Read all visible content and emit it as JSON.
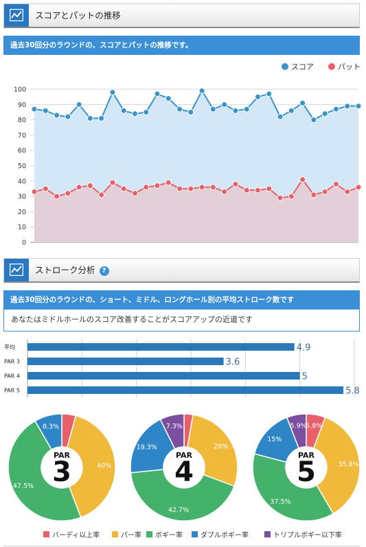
{
  "section1": {
    "title": "スコアとパットの推移",
    "banner": "過去30回分のラウンドの、スコアとパットの推移です。"
  },
  "section2": {
    "title": "ストローク分析",
    "help": "?",
    "banner": "過去30回分のラウンドの、ショート、ミドル、ロングホール別の平均ストローク数です",
    "advice": "あなたはミドルホールのスコア改善することがスコアアップの近道です"
  },
  "colors": {
    "accent": "#3a8fd6",
    "score_line": "#3a93c9",
    "putt_line": "#e8606a",
    "bar": "#2a78b8",
    "birdie": "#e8606a",
    "par": "#f0b93a",
    "bogey": "#44b26a",
    "double": "#2f86c6",
    "triple": "#7b4ea0"
  },
  "chart_data": [
    {
      "type": "area",
      "ylim": [
        0,
        100
      ],
      "yticks": [
        "0",
        "10",
        "20",
        "30",
        "40",
        "50",
        "60",
        "70",
        "80",
        "90",
        "100"
      ],
      "legend_position": "top-right",
      "grid": true,
      "series": [
        {
          "name": "スコア",
          "values": [
            87,
            86,
            83,
            82,
            90,
            81,
            81,
            98,
            86,
            84,
            85,
            97,
            94,
            87,
            85,
            99,
            87,
            90,
            86,
            87,
            95,
            97,
            82,
            86,
            91,
            80,
            84,
            87,
            89,
            89
          ]
        },
        {
          "name": "パット",
          "values": [
            33,
            35,
            30,
            32,
            36,
            37,
            31,
            39,
            35,
            32,
            36,
            37,
            39,
            35,
            35,
            36,
            36,
            33,
            38,
            34,
            34,
            35,
            29,
            30,
            41,
            31,
            33,
            38,
            33,
            36
          ]
        }
      ]
    },
    {
      "type": "bar",
      "orientation": "horizontal",
      "categories": [
        "平均",
        "PAR 3",
        "PAR 4",
        "PAR 5"
      ],
      "values": [
        4.9,
        3.6,
        5,
        5.8
      ],
      "value_labels": [
        "4.9",
        "3.6",
        "5",
        "5.8"
      ],
      "xlim": [
        0,
        6
      ],
      "grid": true
    },
    {
      "type": "pie",
      "center_label": "PAR",
      "center_number": "3",
      "slices": [
        {
          "name": "バーディ以上率",
          "value": 4.2,
          "label": ""
        },
        {
          "name": "パー率",
          "value": 40,
          "label": "40%"
        },
        {
          "name": "ボギー率",
          "value": 47.5,
          "label": "47.5%"
        },
        {
          "name": "ダブルボギー率",
          "value": 8.3,
          "label": "8.3%"
        },
        {
          "name": "トリプルボギー以下率",
          "value": 0,
          "label": ""
        }
      ]
    },
    {
      "type": "pie",
      "center_label": "PAR",
      "center_number": "4",
      "slices": [
        {
          "name": "バーディ以上率",
          "value": 2.7,
          "label": ""
        },
        {
          "name": "パー率",
          "value": 28,
          "label": "28%"
        },
        {
          "name": "ボギー率",
          "value": 42.7,
          "label": "42.7%"
        },
        {
          "name": "ダブルボギー率",
          "value": 19.3,
          "label": "19.3%"
        },
        {
          "name": "トリプルボギー以下率",
          "value": 7.3,
          "label": "7.3%"
        }
      ]
    },
    {
      "type": "pie",
      "center_label": "PAR",
      "center_number": "5",
      "slices": [
        {
          "name": "バーディ以上率",
          "value": 5.8,
          "label": "5.8%"
        },
        {
          "name": "パー率",
          "value": 35.8,
          "label": "35.8%"
        },
        {
          "name": "ボギー率",
          "value": 37.5,
          "label": "37.5%"
        },
        {
          "name": "ダブルボギー率",
          "value": 15,
          "label": "15%"
        },
        {
          "name": "トリプルボギー以下率",
          "value": 5.9,
          "label": "5.9%"
        }
      ]
    }
  ],
  "pie_legend": [
    {
      "label": "バーディ以上率",
      "color": "#e8606a"
    },
    {
      "label": "パー率",
      "color": "#f0b93a"
    },
    {
      "label": "ボギー率",
      "color": "#44b26a"
    },
    {
      "label": "ダブルボギー率",
      "color": "#2f86c6"
    },
    {
      "label": "トリプルボギー以下率",
      "color": "#7b4ea0"
    }
  ]
}
